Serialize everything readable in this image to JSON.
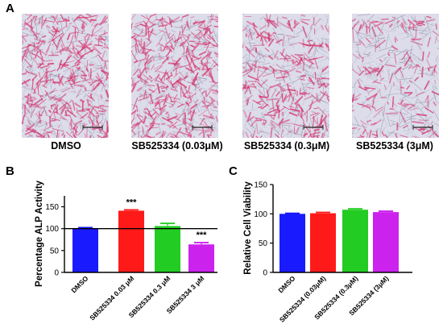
{
  "panel_letters": {
    "a": "A",
    "b": "B",
    "c": "C"
  },
  "micrographs": [
    {
      "label": "DMSO",
      "stain": "dense"
    },
    {
      "label": "SB525334 (0.03μM)",
      "stain": "dense"
    },
    {
      "label": "SB525334 (0.3μM)",
      "stain": "medium"
    },
    {
      "label": "SB525334 (3μM)",
      "stain": "light"
    }
  ],
  "colors": {
    "blue": "#1a1aff",
    "red": "#ff1a1a",
    "green": "#22cc22",
    "magenta": "#cc22ee",
    "stain": "#d6336c",
    "background_tissue": "#dcdcea"
  },
  "chart_data": [
    {
      "type": "bar",
      "panel": "B",
      "ylabel": "Percentage ALP Activity",
      "xlabel": "",
      "ylim": [
        0,
        175
      ],
      "yticks": [
        0,
        50,
        100,
        150
      ],
      "reference_line": 100,
      "categories": [
        "DMSO",
        "SB525334  0.03 μM",
        "SB525334  0.3 μM",
        "SB525334 3 μM"
      ],
      "values": [
        101,
        141,
        106,
        64
      ],
      "errors": [
        1.5,
        2,
        6,
        4
      ],
      "bar_colors": [
        "#1a1aff",
        "#ff1a1a",
        "#22cc22",
        "#cc22ee"
      ],
      "annotations": [
        "",
        "***",
        "",
        "***"
      ]
    },
    {
      "type": "bar",
      "panel": "C",
      "ylabel": "Relative Cell Viability",
      "xlabel": "",
      "ylim": [
        0,
        150
      ],
      "yticks": [
        0,
        50,
        100,
        150
      ],
      "categories": [
        "DMSO",
        "SB525334 (0.03μM)",
        "SB525334 (0.3μM)",
        "SB525334 (3μM)"
      ],
      "values": [
        100,
        101,
        107,
        103
      ],
      "errors": [
        1,
        1.5,
        1.5,
        1.5
      ],
      "bar_colors": [
        "#1a1aff",
        "#ff1a1a",
        "#22cc22",
        "#cc22ee"
      ]
    }
  ]
}
